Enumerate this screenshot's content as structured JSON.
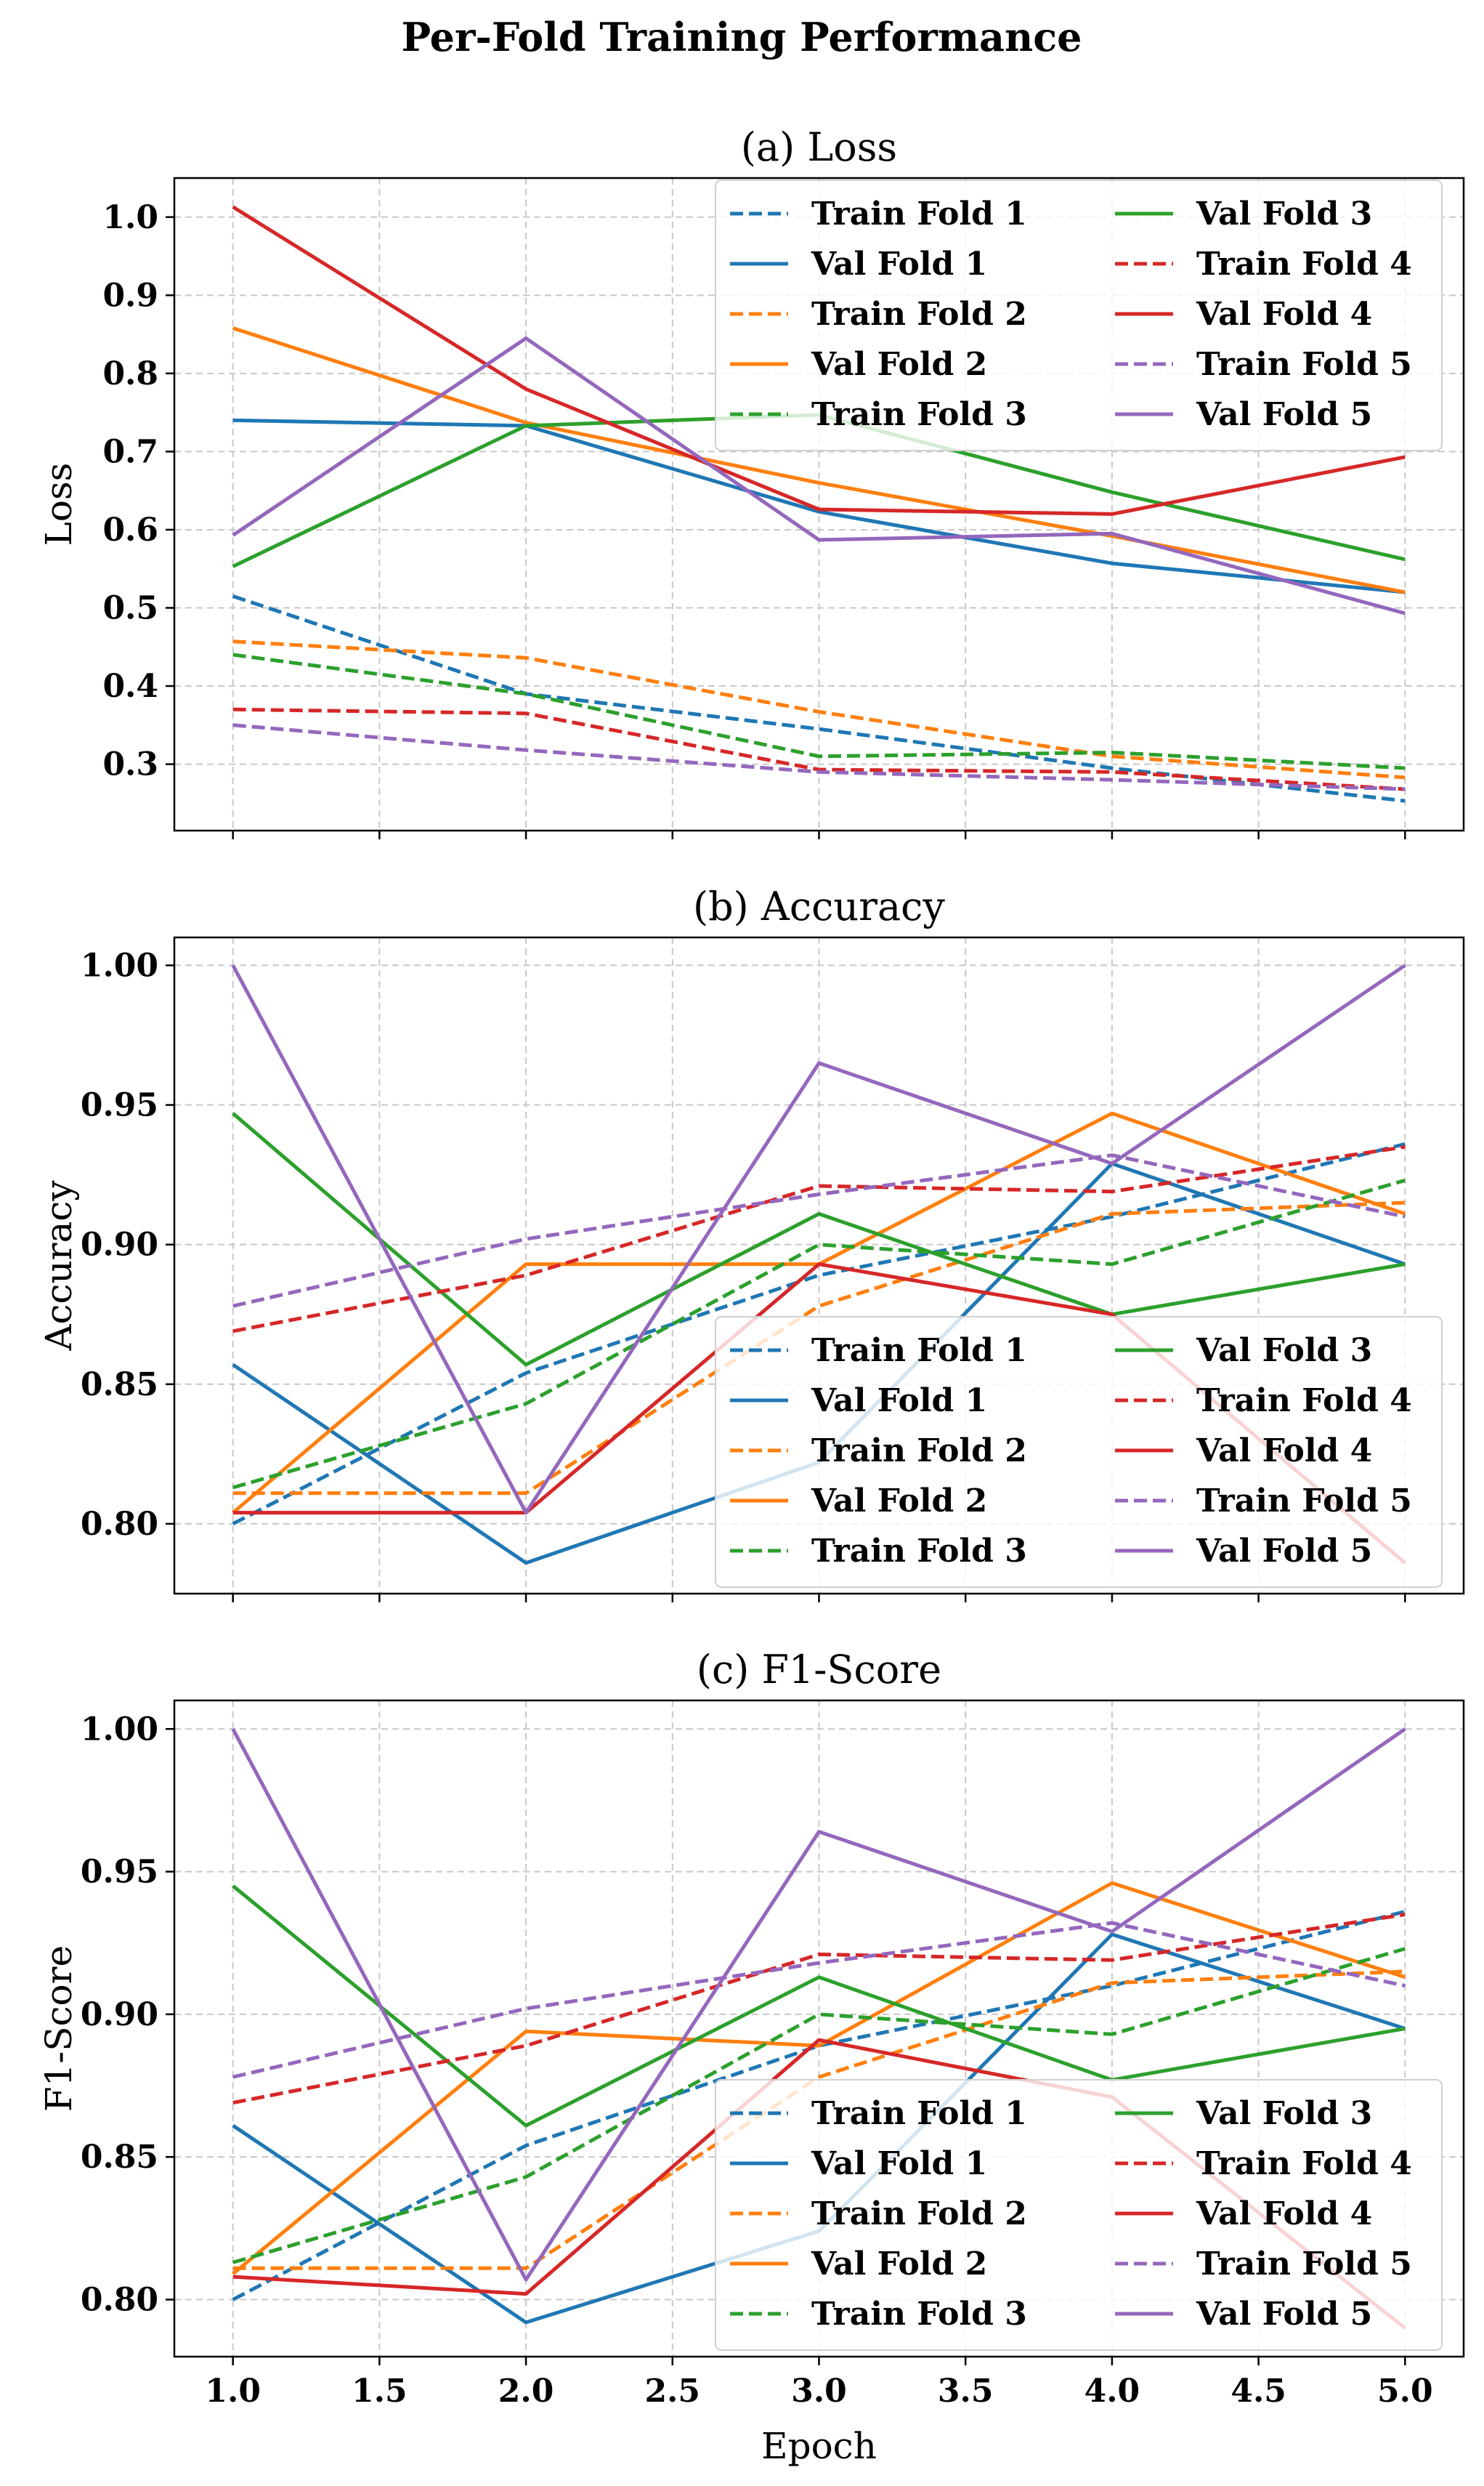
{
  "figure": {
    "title": "Per-Fold Training Performance"
  },
  "chart_data": [
    {
      "type": "line",
      "title": "(a) Loss",
      "xlabel": "",
      "ylabel": "Loss",
      "x": [
        1,
        2,
        3,
        4,
        5
      ],
      "xticks": [
        "1.0",
        "1.5",
        "2.0",
        "2.5",
        "3.0",
        "3.5",
        "4.0",
        "4.5",
        "5.0"
      ],
      "yticks": [
        "0.3",
        "0.4",
        "0.5",
        "0.6",
        "0.7",
        "0.8",
        "0.9",
        "1.0"
      ],
      "xlim": [
        0.8,
        5.2
      ],
      "ylim": [
        0.215,
        1.05
      ],
      "grid": true,
      "legend_position": "top-right",
      "series": [
        {
          "name": "Train Fold 1",
          "style": "dashed",
          "color": "#1f77b4",
          "values": [
            0.515,
            0.39,
            0.345,
            0.295,
            0.253
          ]
        },
        {
          "name": "Val Fold 1",
          "style": "solid",
          "color": "#1f77b4",
          "values": [
            0.74,
            0.733,
            0.623,
            0.557,
            0.52
          ]
        },
        {
          "name": "Train Fold 2",
          "style": "dashed",
          "color": "#ff7f0e",
          "values": [
            0.457,
            0.436,
            0.367,
            0.31,
            0.283
          ]
        },
        {
          "name": "Val Fold 2",
          "style": "solid",
          "color": "#ff7f0e",
          "values": [
            0.858,
            0.737,
            0.66,
            0.592,
            0.52
          ]
        },
        {
          "name": "Train Fold 3",
          "style": "dashed",
          "color": "#2ca02c",
          "values": [
            0.44,
            0.39,
            0.31,
            0.315,
            0.295
          ]
        },
        {
          "name": "Val Fold 3",
          "style": "solid",
          "color": "#2ca02c",
          "values": [
            0.553,
            0.733,
            0.747,
            0.648,
            0.562
          ]
        },
        {
          "name": "Train Fold 4",
          "style": "dashed",
          "color": "#d62728",
          "values": [
            0.37,
            0.365,
            0.293,
            0.29,
            0.268
          ]
        },
        {
          "name": "Val Fold 4",
          "style": "solid",
          "color": "#d62728",
          "values": [
            1.013,
            0.78,
            0.626,
            0.62,
            0.693
          ]
        },
        {
          "name": "Train Fold 5",
          "style": "dashed",
          "color": "#9467bd",
          "values": [
            0.35,
            0.318,
            0.29,
            0.28,
            0.268
          ]
        },
        {
          "name": "Val Fold 5",
          "style": "solid",
          "color": "#9467bd",
          "values": [
            0.593,
            0.845,
            0.587,
            0.595,
            0.493
          ]
        }
      ]
    },
    {
      "type": "line",
      "title": "(b) Accuracy",
      "xlabel": "",
      "ylabel": "Accuracy",
      "x": [
        1,
        2,
        3,
        4,
        5
      ],
      "xticks": [
        "1.0",
        "1.5",
        "2.0",
        "2.5",
        "3.0",
        "3.5",
        "4.0",
        "4.5",
        "5.0"
      ],
      "yticks": [
        "0.80",
        "0.85",
        "0.90",
        "0.95",
        "1.00"
      ],
      "xlim": [
        0.8,
        5.2
      ],
      "ylim": [
        0.775,
        1.01
      ],
      "grid": true,
      "legend_position": "lower-right",
      "series": [
        {
          "name": "Train Fold 1",
          "style": "dashed",
          "color": "#1f77b4",
          "values": [
            0.8,
            0.854,
            0.889,
            0.91,
            0.936
          ]
        },
        {
          "name": "Val Fold 1",
          "style": "solid",
          "color": "#1f77b4",
          "values": [
            0.857,
            0.786,
            0.822,
            0.929,
            0.893
          ]
        },
        {
          "name": "Train Fold 2",
          "style": "dashed",
          "color": "#ff7f0e",
          "values": [
            0.811,
            0.811,
            0.878,
            0.911,
            0.915
          ]
        },
        {
          "name": "Val Fold 2",
          "style": "solid",
          "color": "#ff7f0e",
          "values": [
            0.804,
            0.893,
            0.893,
            0.947,
            0.911
          ]
        },
        {
          "name": "Train Fold 3",
          "style": "dashed",
          "color": "#2ca02c",
          "values": [
            0.813,
            0.843,
            0.9,
            0.893,
            0.923
          ]
        },
        {
          "name": "Val Fold 3",
          "style": "solid",
          "color": "#2ca02c",
          "values": [
            0.947,
            0.857,
            0.911,
            0.875,
            0.893
          ]
        },
        {
          "name": "Train Fold 4",
          "style": "dashed",
          "color": "#d62728",
          "values": [
            0.869,
            0.889,
            0.921,
            0.919,
            0.935
          ]
        },
        {
          "name": "Val Fold 4",
          "style": "solid",
          "color": "#d62728",
          "values": [
            0.804,
            0.804,
            0.893,
            0.875,
            0.786
          ]
        },
        {
          "name": "Train Fold 5",
          "style": "dashed",
          "color": "#9467bd",
          "values": [
            0.878,
            0.902,
            0.918,
            0.932,
            0.91
          ]
        },
        {
          "name": "Val Fold 5",
          "style": "solid",
          "color": "#9467bd",
          "values": [
            1.0,
            0.804,
            0.965,
            0.929,
            1.0
          ]
        }
      ]
    },
    {
      "type": "line",
      "title": "(c) F1-Score",
      "xlabel": "Epoch",
      "ylabel": "F1-Score",
      "x": [
        1,
        2,
        3,
        4,
        5
      ],
      "xticks": [
        "1.0",
        "1.5",
        "2.0",
        "2.5",
        "3.0",
        "3.5",
        "4.0",
        "4.5",
        "5.0"
      ],
      "yticks": [
        "0.80",
        "0.85",
        "0.90",
        "0.95",
        "1.00"
      ],
      "xlim": [
        0.8,
        5.2
      ],
      "ylim": [
        0.78,
        1.01
      ],
      "grid": true,
      "legend_position": "lower-right",
      "series": [
        {
          "name": "Train Fold 1",
          "style": "dashed",
          "color": "#1f77b4",
          "values": [
            0.8,
            0.854,
            0.889,
            0.91,
            0.936
          ]
        },
        {
          "name": "Val Fold 1",
          "style": "solid",
          "color": "#1f77b4",
          "values": [
            0.861,
            0.792,
            0.824,
            0.928,
            0.895
          ]
        },
        {
          "name": "Train Fold 2",
          "style": "dashed",
          "color": "#ff7f0e",
          "values": [
            0.811,
            0.811,
            0.878,
            0.911,
            0.915
          ]
        },
        {
          "name": "Val Fold 2",
          "style": "solid",
          "color": "#ff7f0e",
          "values": [
            0.809,
            0.894,
            0.889,
            0.946,
            0.913
          ]
        },
        {
          "name": "Train Fold 3",
          "style": "dashed",
          "color": "#2ca02c",
          "values": [
            0.813,
            0.843,
            0.9,
            0.893,
            0.923
          ]
        },
        {
          "name": "Val Fold 3",
          "style": "solid",
          "color": "#2ca02c",
          "values": [
            0.945,
            0.861,
            0.913,
            0.877,
            0.895
          ]
        },
        {
          "name": "Train Fold 4",
          "style": "dashed",
          "color": "#d62728",
          "values": [
            0.869,
            0.889,
            0.921,
            0.919,
            0.935
          ]
        },
        {
          "name": "Val Fold 4",
          "style": "solid",
          "color": "#d62728",
          "values": [
            0.808,
            0.802,
            0.891,
            0.871,
            0.79
          ]
        },
        {
          "name": "Train Fold 5",
          "style": "dashed",
          "color": "#9467bd",
          "values": [
            0.878,
            0.902,
            0.918,
            0.932,
            0.91
          ]
        },
        {
          "name": "Val Fold 5",
          "style": "solid",
          "color": "#9467bd",
          "values": [
            1.0,
            0.807,
            0.964,
            0.929,
            1.0
          ]
        }
      ]
    }
  ]
}
